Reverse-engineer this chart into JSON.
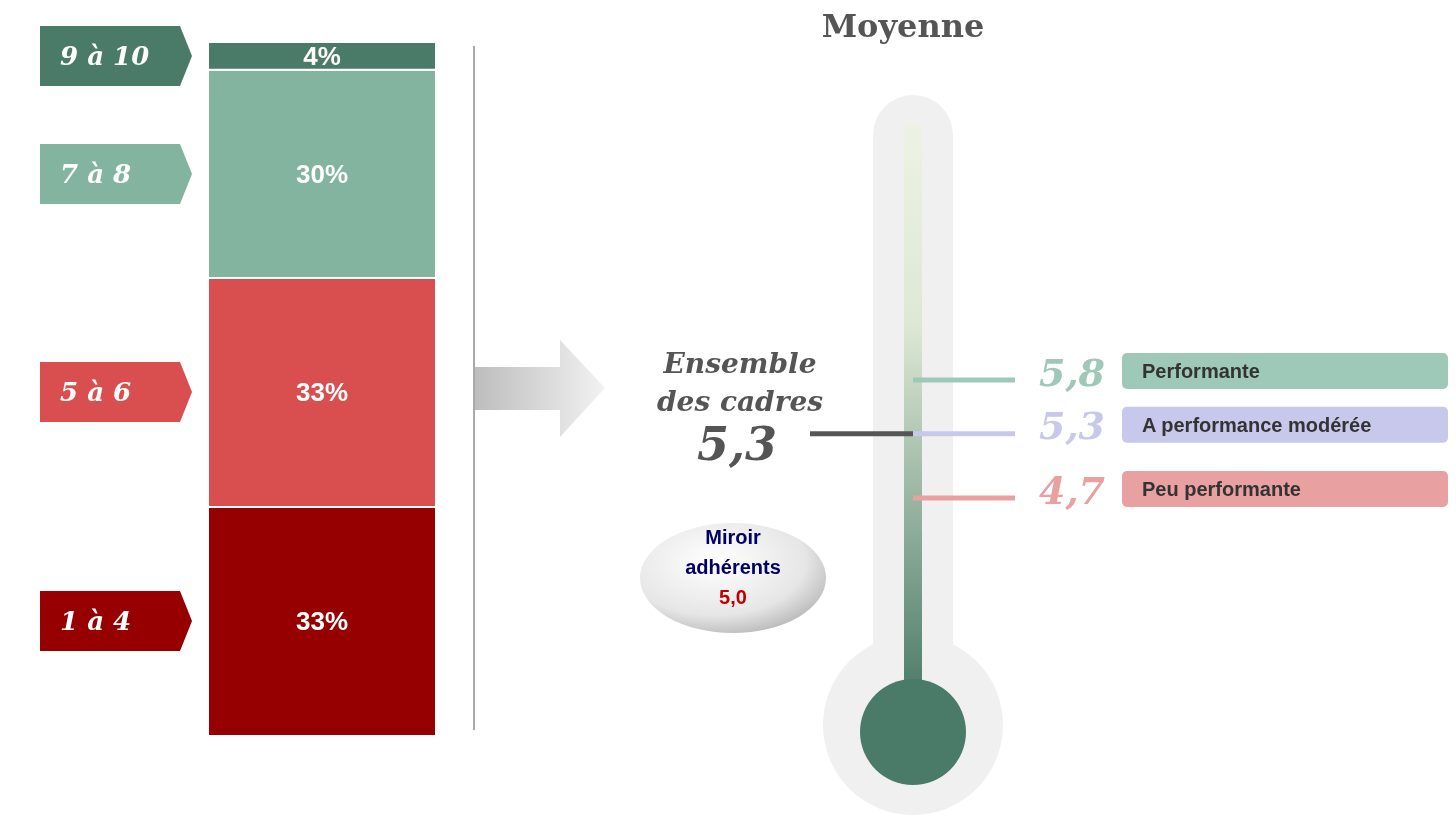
{
  "chart_data": [
    {
      "type": "bar",
      "stacked": true,
      "categories": [
        null
      ],
      "series": [
        {
          "name": "1 à 4",
          "color": "#960000",
          "values": [
            33
          ],
          "value_labels": [
            "33%"
          ]
        },
        {
          "name": "5 à 6",
          "color": "#d94f4f",
          "values": [
            33
          ],
          "value_labels": [
            "33%"
          ]
        },
        {
          "name": "7 à 8",
          "color": "#82b4a0",
          "values": [
            30
          ],
          "value_labels": [
            "30%"
          ]
        },
        {
          "name": "9 à 10",
          "color": "#4a7a68",
          "values": [
            4
          ],
          "value_labels": [
            "4%"
          ]
        }
      ]
    },
    {
      "type": "other",
      "title": "Moyenne",
      "categories": [
        "Performante",
        "A performance modérée",
        "Peu performante"
      ],
      "series": [
        {
          "values": [
            5.8,
            5.3,
            4.7
          ],
          "colors": [
            "#9ec8b8",
            "#c8c8ec",
            "#e8a0a0"
          ],
          "value_labels": [
            "5,8",
            "5,3",
            "4,7"
          ]
        },
        {
          "name": "Ensemble des cadres",
          "color": "#555555",
          "values": [
            null,
            5.3,
            null
          ],
          "value_labels": [
            null,
            "5,3",
            null
          ]
        }
      ],
      "annotations": [
        "Miroir adhérents 5,0"
      ]
    }
  ]
}
